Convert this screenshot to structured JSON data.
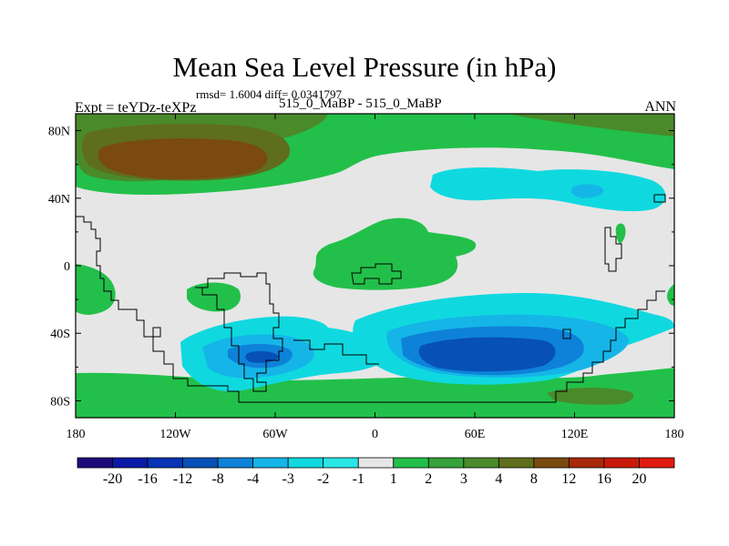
{
  "title": "Mean Sea Level Pressure (in hPa)",
  "stats": "rmsd= 1.6004 diff= 0.0341797",
  "experiment": "Expt = teYDz-teXPz",
  "subtitle": "515_0_MaBP - 515_0_MaBP",
  "season": "ANN",
  "colors": {
    "background": "#e6e6e6",
    "coastline": "#000000",
    "plus_2": "#22c04a",
    "plus_3": "#4a8a2a",
    "plus_4": "#5e6e1c",
    "plus_8": "#7a4a10",
    "minus_2": "#0fd9df",
    "minus_3": "#15b5e8",
    "minus_4": "#0e82d8",
    "minus_8": "#0750b6"
  },
  "map": {
    "projection": "cylindrical equidistant",
    "lon_range": [
      -180,
      180
    ],
    "lat_range": [
      -90,
      90
    ],
    "x_ticks": [
      "180",
      "120W",
      "60W",
      "0",
      "60E",
      "120E",
      "180"
    ],
    "y_ticks": [
      "80N",
      "40N",
      "0",
      "40S",
      "80S"
    ]
  },
  "colorbar": {
    "levels": [
      "-20",
      "-16",
      "-12",
      "-8",
      "-4",
      "-3",
      "-2",
      "-1",
      "1",
      "2",
      "3",
      "4",
      "8",
      "12",
      "16",
      "20"
    ],
    "colors": [
      "#1e0a78",
      "#0a1aa6",
      "#0733b4",
      "#0750b6",
      "#0e82d8",
      "#15b5e8",
      "#0fd9df",
      "#2ae6e6",
      "#e6e6e6",
      "#22c04a",
      "#35a23a",
      "#4a8a2a",
      "#5e6e1c",
      "#7a4a10",
      "#a8280a",
      "#c81a0a",
      "#e0190e"
    ]
  }
}
